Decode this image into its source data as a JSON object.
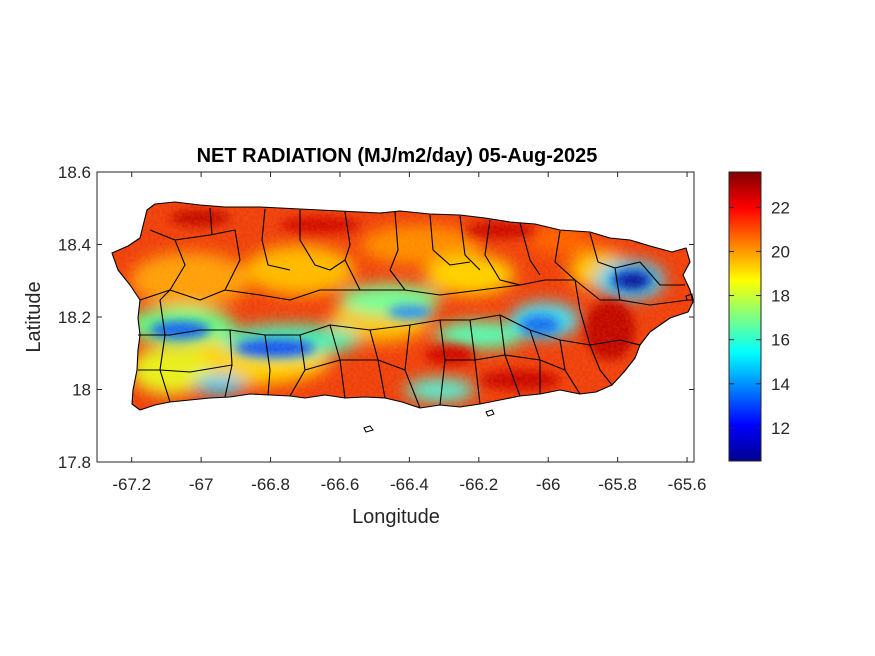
{
  "chart_data": {
    "type": "heatmap",
    "title": "NET RADIATION (MJ/m2/day) 05-Aug-2025",
    "xlabel": "Longitude",
    "ylabel": "Latitude",
    "xlim": [
      -67.3,
      -65.58
    ],
    "ylim": [
      17.8,
      18.6
    ],
    "x_ticks": [
      -67.2,
      -67,
      -66.8,
      -66.6,
      -66.4,
      -66.2,
      -66,
      -65.8,
      -65.6
    ],
    "x_tick_labels": [
      "-67.2",
      "-67",
      "-66.8",
      "-66.6",
      "-66.4",
      "-66.2",
      "-66",
      "-65.8",
      "-65.6"
    ],
    "y_ticks": [
      17.8,
      18,
      18.2,
      18.4,
      18.6
    ],
    "y_tick_labels": [
      "17.8",
      "18",
      "18.2",
      "18.4",
      "18.6"
    ],
    "colorbar": {
      "colormap": "jet",
      "clim": [
        10.5,
        23.6
      ],
      "ticks": [
        12,
        14,
        16,
        18,
        20,
        22
      ],
      "tick_labels": [
        "12",
        "14",
        "16",
        "18",
        "20",
        "22"
      ]
    },
    "grid": false,
    "low_value_regions": [
      {
        "lon": -67.05,
        "lat": 18.17,
        "value": 14
      },
      {
        "lon": -66.78,
        "lat": 18.12,
        "value": 13.5
      },
      {
        "lon": -66.3,
        "lat": 18.23,
        "value": 15
      },
      {
        "lon": -66.05,
        "lat": 18.15,
        "value": 14
      },
      {
        "lon": -65.78,
        "lat": 18.3,
        "value": 11.5
      }
    ]
  },
  "colors": {
    "island_base": "#e8340f",
    "municipal_lines": "#000000",
    "axes": "#262626"
  }
}
